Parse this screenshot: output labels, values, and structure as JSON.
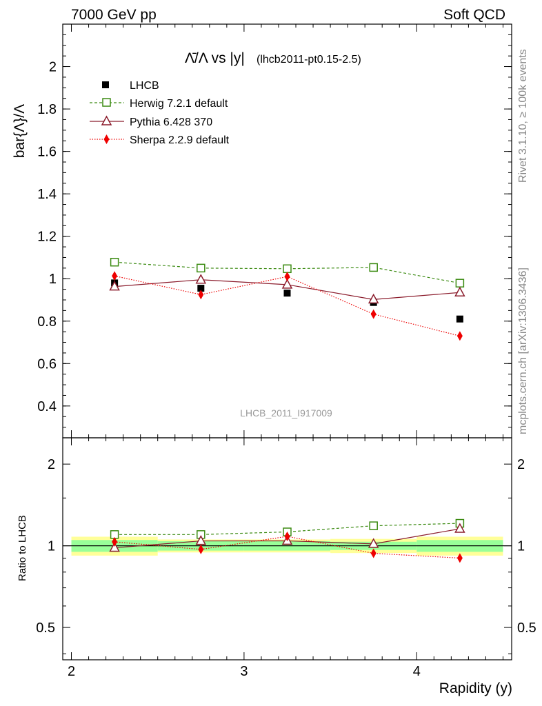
{
  "header": {
    "left": "7000 GeV pp",
    "right": "Soft QCD"
  },
  "side_text": {
    "top": "Rivet 3.1.10, ≥ 100k events",
    "bottom": "mcplots.cern.ch [arXiv:1306.3436]"
  },
  "colors": {
    "lhcb": "#000000",
    "herwig": "#3a8a10",
    "pythia": "#8b1c2c",
    "sherpa": "#ee0000",
    "band_inner": "#99ff99",
    "band_outer": "#ffff99"
  },
  "chart_data": [
    {
      "type": "scatter",
      "title": "Λ̄/Λ vs |y|",
      "subtitle": "(lhcb2011-pt0.15-2.5)",
      "watermark": "LHCB_2011_I917009",
      "ylabel": "bar{Λ}/Λ",
      "xlim": [
        1.95,
        4.55
      ],
      "ylim": [
        0.25,
        2.2
      ],
      "yticks": [
        0.4,
        0.6,
        0.8,
        1,
        1.2,
        1.4,
        1.6,
        1.8,
        2
      ],
      "ytick_labels": [
        "0.4",
        "0.6",
        "0.8",
        "1",
        "1.2",
        "1.4",
        "1.6",
        "1.8",
        "2"
      ],
      "x": [
        2.25,
        2.75,
        3.25,
        3.75,
        4.25
      ],
      "series": [
        {
          "name": "LHCB",
          "style": "data",
          "values": [
            0.98,
            0.955,
            0.932,
            0.888,
            0.81
          ]
        },
        {
          "name": "Herwig 7.2.1 default",
          "style": "square",
          "values": [
            1.078,
            1.05,
            1.047,
            1.053,
            0.979
          ]
        },
        {
          "name": "Pythia 6.428 370",
          "style": "triangle",
          "values": [
            0.963,
            0.995,
            0.972,
            0.902,
            0.935
          ]
        },
        {
          "name": "Sherpa 2.2.9 default",
          "style": "diamond",
          "values": [
            1.013,
            0.925,
            1.01,
            0.833,
            0.73
          ]
        }
      ]
    },
    {
      "type": "scatter",
      "ylabel": "Ratio to LHCB",
      "xlabel": "Rapidity (y)",
      "xlim": [
        1.95,
        4.55
      ],
      "ylim": [
        0.38,
        2.5
      ],
      "log_y": true,
      "yticks": [
        0.5,
        1,
        2
      ],
      "ytick_labels": [
        "0.5",
        "1",
        "2"
      ],
      "xticks": [
        2,
        3,
        4
      ],
      "xtick_labels": [
        "2",
        "3",
        "4"
      ],
      "x": [
        2.25,
        2.75,
        3.25,
        3.75,
        4.25
      ],
      "bins": [
        [
          2.0,
          2.5
        ],
        [
          2.5,
          3.0
        ],
        [
          3.0,
          3.5
        ],
        [
          3.5,
          4.0
        ],
        [
          4.0,
          4.5
        ]
      ],
      "band_inner": [
        [
          0.95,
          1.05
        ],
        [
          0.96,
          1.04
        ],
        [
          0.96,
          1.04
        ],
        [
          0.965,
          1.035
        ],
        [
          0.95,
          1.05
        ]
      ],
      "band_outer": [
        [
          0.92,
          1.08
        ],
        [
          0.945,
          1.055
        ],
        [
          0.945,
          1.055
        ],
        [
          0.94,
          1.06
        ],
        [
          0.92,
          1.08
        ]
      ],
      "series": [
        {
          "name": "Herwig 7.2.1 default",
          "style": "square",
          "values": [
            1.1,
            1.1,
            1.125,
            1.185,
            1.21
          ]
        },
        {
          "name": "Pythia 6.428 370",
          "style": "triangle",
          "values": [
            0.983,
            1.042,
            1.043,
            1.016,
            1.155
          ]
        },
        {
          "name": "Sherpa 2.2.9 default",
          "style": "diamond",
          "values": [
            1.034,
            0.97,
            1.083,
            0.938,
            0.901
          ]
        }
      ]
    }
  ]
}
